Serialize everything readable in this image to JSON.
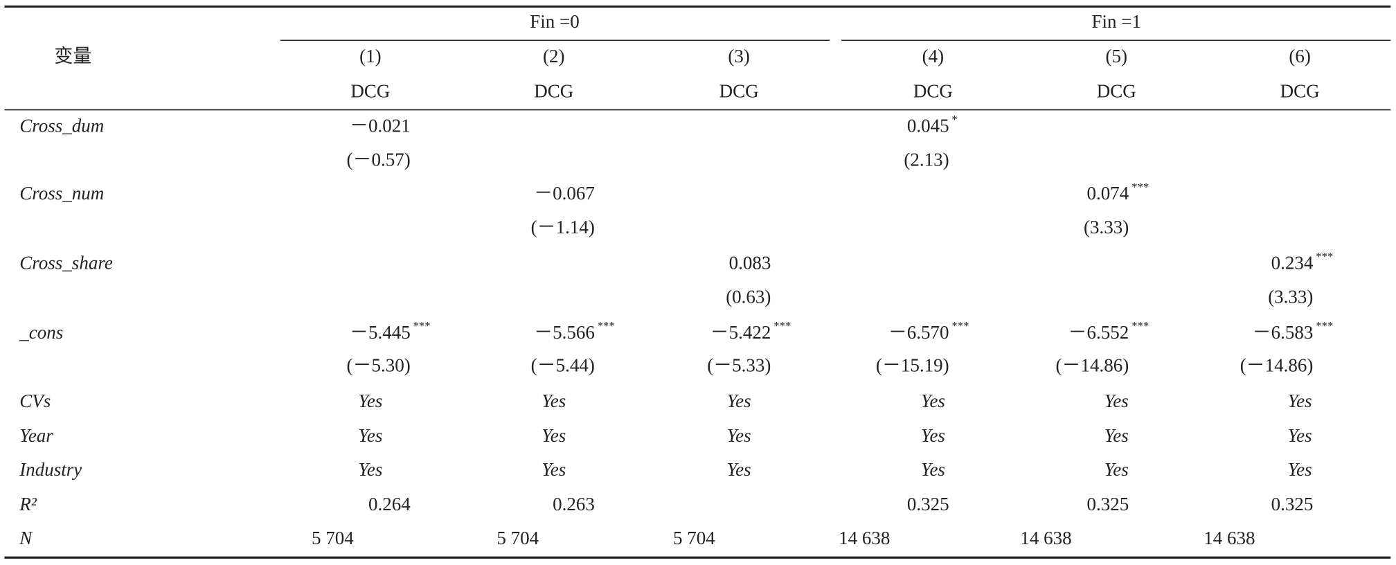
{
  "table": {
    "corner": "变量",
    "groups": [
      "Fin =0",
      "Fin =1"
    ],
    "columns": [
      "(1)",
      "(2)",
      "(3)",
      "(4)",
      "(5)",
      "(6)"
    ],
    "depvars": [
      "DCG",
      "DCG",
      "DCG",
      "DCG",
      "DCG",
      "DCG"
    ],
    "rows": [
      {
        "label": "Cross_dum",
        "cells": [
          "－0.021",
          null,
          null,
          "0.045",
          null,
          null
        ],
        "stars": [
          null,
          null,
          null,
          "*",
          null,
          null
        ]
      },
      {
        "cells": [
          "(－0.57)",
          null,
          null,
          "(2.13)",
          null,
          null
        ]
      },
      {
        "label": "Cross_num",
        "cells": [
          null,
          "－0.067",
          null,
          null,
          "0.074",
          null
        ],
        "stars": [
          null,
          null,
          null,
          null,
          "***",
          null
        ]
      },
      {
        "cells": [
          null,
          "(－1.14)",
          null,
          null,
          "(3.33)",
          null
        ]
      },
      {
        "label": "Cross_share",
        "cells": [
          null,
          null,
          "0.083",
          null,
          null,
          "0.234"
        ],
        "stars": [
          null,
          null,
          null,
          null,
          null,
          "***"
        ]
      },
      {
        "cells": [
          null,
          null,
          "(0.63)",
          null,
          null,
          "(3.33)"
        ]
      },
      {
        "label": "_cons",
        "cells": [
          "－5.445",
          "－5.566",
          "－5.422",
          "－6.570",
          "－6.552",
          "－6.583"
        ],
        "stars": [
          "***",
          "***",
          "***",
          "***",
          "***",
          "***"
        ]
      },
      {
        "cells": [
          "(－5.30)",
          "(－5.44)",
          "(－5.33)",
          "(－15.19)",
          "(－14.86)",
          "(－14.86)"
        ]
      },
      {
        "label": "CVs",
        "cells": [
          "Yes",
          "Yes",
          "Yes",
          "Yes",
          "Yes",
          "Yes"
        ]
      },
      {
        "label": "Year",
        "cells": [
          "Yes",
          "Yes",
          "Yes",
          "Yes",
          "Yes",
          "Yes"
        ]
      },
      {
        "label": "Industry",
        "cells": [
          "Yes",
          "Yes",
          "Yes",
          "Yes",
          "Yes",
          "Yes"
        ]
      },
      {
        "label": "R²",
        "cells": [
          "0.264",
          "0.263",
          null,
          "0.325",
          "0.325",
          "0.325"
        ]
      },
      {
        "label": "N",
        "cells": [
          "5 704",
          "5 704",
          "5 704",
          "14 638",
          "14 638",
          "14 638"
        ]
      }
    ]
  }
}
